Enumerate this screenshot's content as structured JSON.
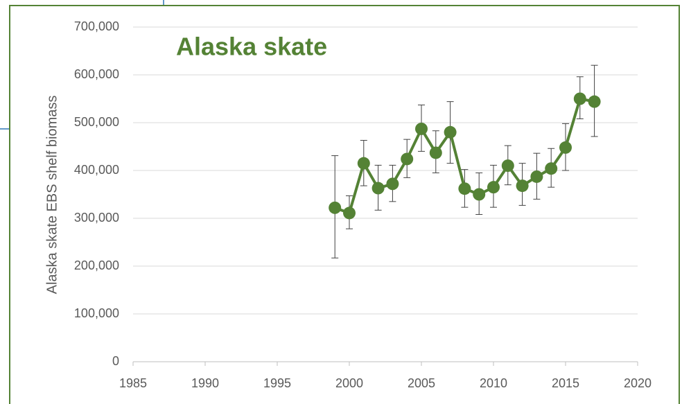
{
  "chart_data": {
    "type": "line",
    "title": "Alaska skate",
    "y_label": "Alaska skate EBS shelf biomass",
    "x": [
      1999,
      2000,
      2001,
      2002,
      2003,
      2004,
      2005,
      2006,
      2007,
      2008,
      2009,
      2010,
      2011,
      2012,
      2013,
      2014,
      2015,
      2016,
      2017
    ],
    "series": [
      {
        "color": "#548235",
        "values": [
          322000,
          311000,
          415000,
          363000,
          372000,
          424000,
          487000,
          437000,
          480000,
          362000,
          350000,
          365000,
          410000,
          368000,
          387000,
          404000,
          448000,
          550000,
          544000
        ],
        "error_high": [
          431000,
          347000,
          463000,
          411000,
          411000,
          465000,
          537000,
          483000,
          544000,
          402000,
          395000,
          411000,
          452000,
          415000,
          436000,
          446000,
          498000,
          596000,
          620000
        ],
        "error_low": [
          217000,
          278000,
          368000,
          317000,
          335000,
          385000,
          440000,
          395000,
          415000,
          323000,
          308000,
          323000,
          370000,
          327000,
          340000,
          365000,
          400000,
          508000,
          471000
        ]
      }
    ],
    "xlim": [
      1985,
      2020
    ],
    "xticks": [
      1985,
      1990,
      1995,
      2000,
      2005,
      2010,
      2015,
      2020
    ],
    "ylim": [
      0,
      700000
    ],
    "yticks": [
      0,
      {
        "value": 100000,
        "label": "100,000"
      },
      {
        "value": 200000,
        "label": "200,000"
      },
      {
        "value": 300000,
        "label": "300,000"
      },
      {
        "value": 400000,
        "label": "400,000"
      },
      {
        "value": 500000,
        "label": "500,000"
      },
      {
        "value": 600000,
        "label": "600,000"
      },
      {
        "value": 700000,
        "label": "700,000"
      }
    ],
    "grid": true
  }
}
